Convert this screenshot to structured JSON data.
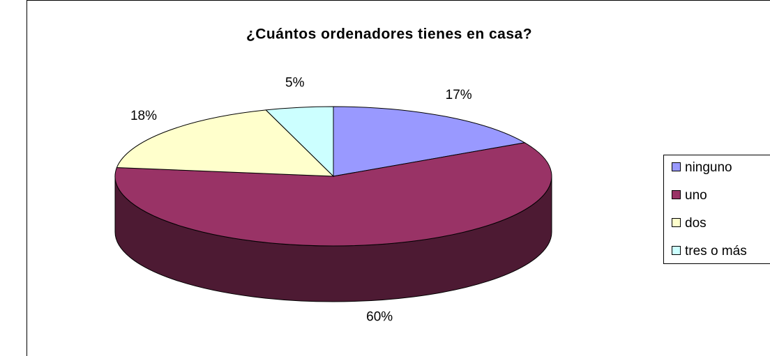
{
  "chart_data": {
    "type": "pie",
    "title": "¿Cuántos ordenadores tienes en casa?",
    "categories": [
      "ninguno",
      "uno",
      "dos",
      "tres o más"
    ],
    "values": [
      17,
      60,
      18,
      5
    ],
    "value_labels": [
      "17%",
      "60%",
      "18%",
      "5%"
    ],
    "colors": [
      "#9999ff",
      "#993366",
      "#ffffcc",
      "#ccffff"
    ],
    "legend": "right"
  }
}
